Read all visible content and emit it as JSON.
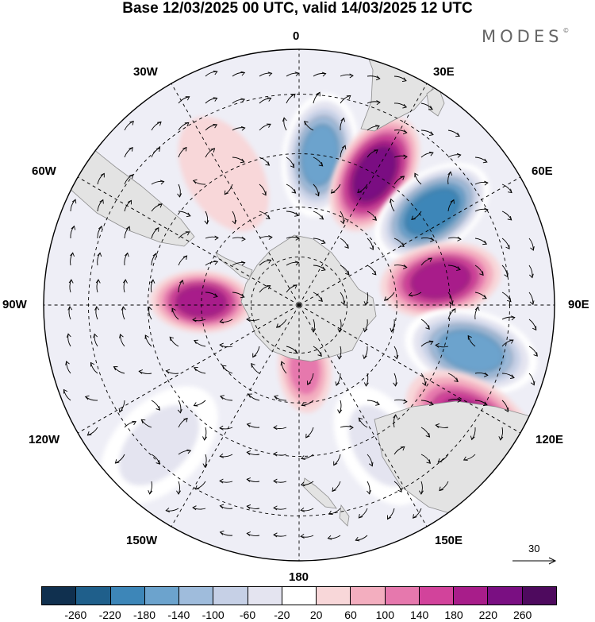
{
  "title": "Base 12/03/2025 00 UTC, valid 14/03/2025 12 UTC",
  "logo_text": "MODES",
  "logo_mark": "©",
  "longitude_labels": [
    "0",
    "30E",
    "60E",
    "90E",
    "120E",
    "150E",
    "180",
    "150W",
    "120W",
    "90W",
    "60W",
    "30W"
  ],
  "reference_vector": {
    "value": "30"
  },
  "colorbar": {
    "ticks": [
      "-260",
      "-220",
      "-180",
      "-140",
      "-100",
      "-60",
      "-20",
      "20",
      "60",
      "100",
      "140",
      "180",
      "220",
      "260"
    ],
    "colors": [
      "#10304f",
      "#1f5f8b",
      "#3d86b8",
      "#6ca3cd",
      "#9fbcdc",
      "#c6d0e6",
      "#e4e4f0",
      "#ffffff",
      "#f8d7d9",
      "#f3aebf",
      "#e678ad",
      "#d2439b",
      "#a81d8a",
      "#7a0f82",
      "#4e0a5e"
    ]
  },
  "colors": {
    "land": "#e3e3e3",
    "coast": "#8c8c8c",
    "vector": "#000000"
  },
  "anomalies": [
    {
      "lon": 8,
      "lat": -45,
      "value": -200
    },
    {
      "lon": 30,
      "lat": -45,
      "value": 250
    },
    {
      "lon": 55,
      "lat": -42,
      "value": -230
    },
    {
      "lon": 80,
      "lat": -47,
      "value": 200
    },
    {
      "lon": 105,
      "lat": -38,
      "value": -200
    },
    {
      "lon": 125,
      "lat": -30,
      "value": 180
    },
    {
      "lon": 150,
      "lat": -42,
      "value": -80
    },
    {
      "lon": 175,
      "lat": -70,
      "value": 100
    },
    {
      "lon": -88,
      "lat": -60,
      "value": 190
    },
    {
      "lon": -135,
      "lat": -33,
      "value": -80
    },
    {
      "lon": -30,
      "lat": -45,
      "value": 40
    }
  ],
  "land_areas": [
    "Antarctica",
    "South America",
    "Africa",
    "Australia",
    "New Zealand",
    "Madagascar"
  ]
}
